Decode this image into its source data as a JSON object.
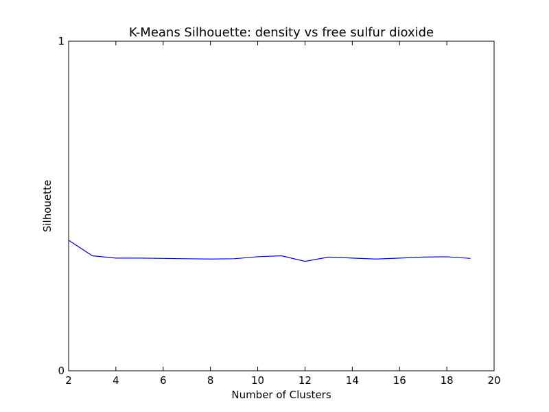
{
  "chart_data": {
    "type": "line",
    "title": "K-Means Silhouette: density vs free sulfur dioxide",
    "xlabel": "Number of Clusters",
    "ylabel": "Silhouette",
    "xlim": [
      2,
      20
    ],
    "ylim": [
      0,
      1
    ],
    "xticks": [
      2,
      4,
      6,
      8,
      10,
      12,
      14,
      16,
      18,
      20
    ],
    "yticks": [
      0,
      1
    ],
    "grid": false,
    "line_color": "#0000ff",
    "series": [
      {
        "x": [
          2,
          3,
          4,
          5,
          6,
          7,
          8,
          9,
          10,
          11,
          12,
          13,
          14,
          15,
          16,
          17,
          18,
          19
        ],
        "values": [
          0.396,
          0.349,
          0.342,
          0.342,
          0.341,
          0.34,
          0.339,
          0.34,
          0.346,
          0.349,
          0.332,
          0.345,
          0.342,
          0.339,
          0.342,
          0.345,
          0.346,
          0.341
        ]
      }
    ]
  }
}
